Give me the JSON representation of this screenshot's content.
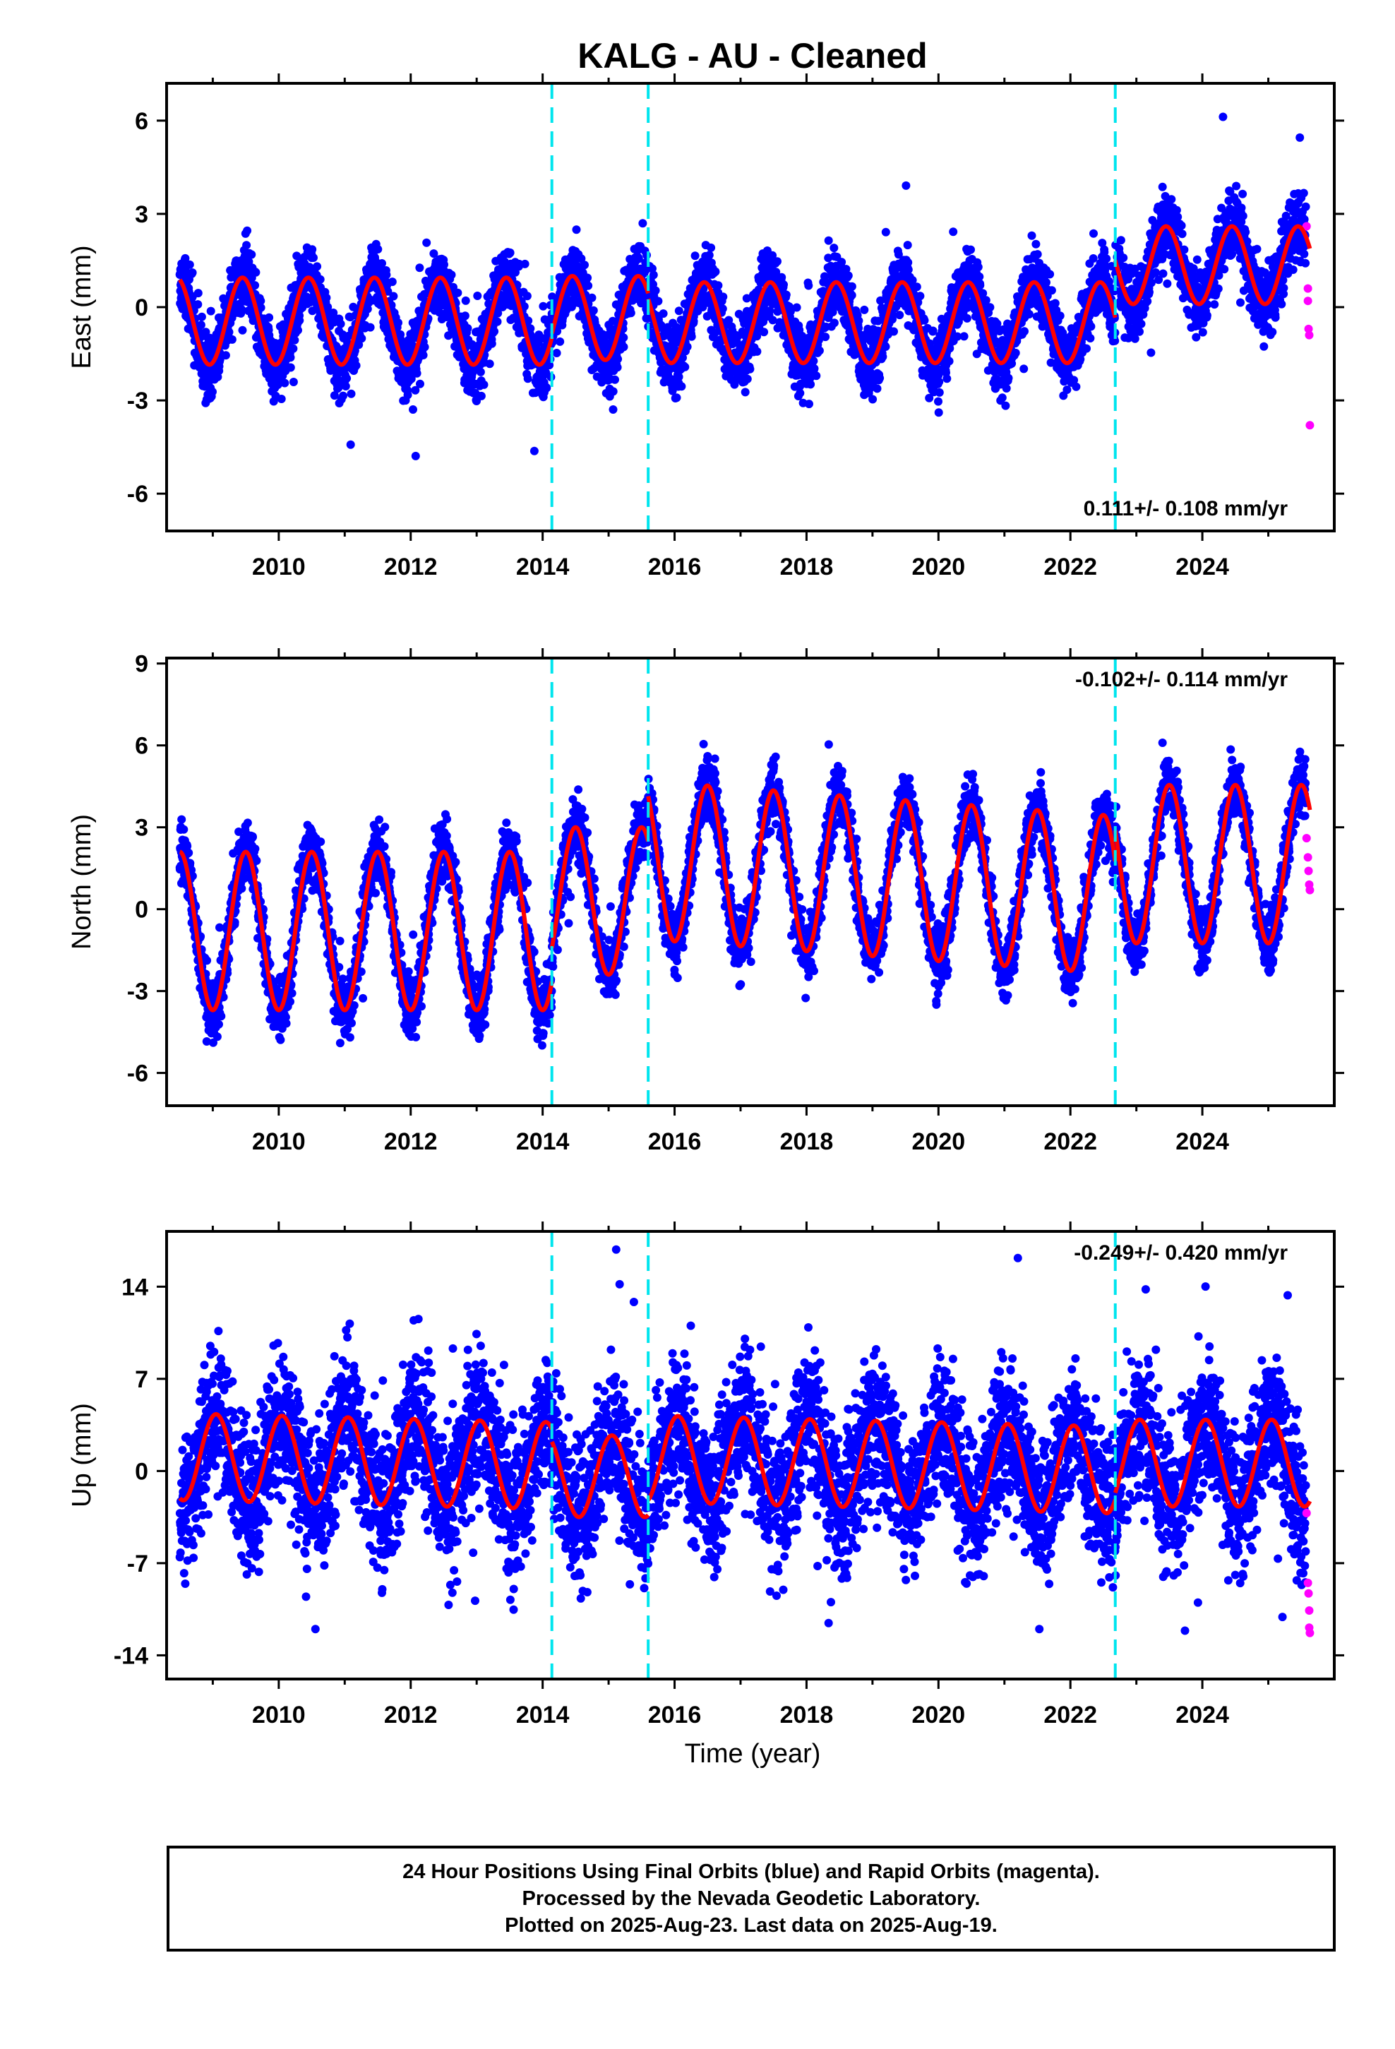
{
  "title": "KALG  - AU - Cleaned",
  "colors": {
    "final_orbits": "#0000ff",
    "rapid_orbits": "#ff00ff",
    "model_fit": "#ff0000",
    "equipment_change": "#00e5ee",
    "frame": "#000000"
  },
  "chart_data": [
    {
      "type": "scatter",
      "panel": "east",
      "ylabel": "East (mm)",
      "xlabel": "",
      "xlim": [
        2008.3,
        2026.0
      ],
      "ylim": [
        -7.2,
        7.2
      ],
      "xticks": [
        "2010",
        "2012",
        "2014",
        "2016",
        "2018",
        "2020",
        "2022",
        "2024"
      ],
      "yticks": [
        "-6",
        "-3",
        "0",
        "3",
        "6"
      ],
      "ytick_values": [
        -6,
        -3,
        0,
        3,
        6
      ],
      "annotation": "0.111+/- 0.108 mm/yr",
      "annotation_position": "bottom-right",
      "breaks": [
        2014.14,
        2015.6,
        2022.68
      ],
      "model_segments": [
        {
          "start": 2008.5,
          "end": 2014.14,
          "offset": -0.45,
          "trend": 0.0,
          "amplitude": 1.4,
          "phase_peak": 0.45
        },
        {
          "start": 2014.14,
          "end": 2015.6,
          "offset": -0.35,
          "trend": 0.0,
          "amplitude": 1.35,
          "phase_peak": 0.45
        },
        {
          "start": 2015.6,
          "end": 2022.68,
          "offset": -0.5,
          "trend": 0.0,
          "amplitude": 1.3,
          "phase_peak": 0.45
        },
        {
          "start": 2022.68,
          "end": 2025.63,
          "offset": 1.35,
          "trend": 0.0,
          "amplitude": 1.25,
          "phase_peak": 0.45
        }
      ],
      "scatter_spread": 0.8,
      "rapid_points": [
        {
          "x": 2025.58,
          "y": 2.6
        },
        {
          "x": 2025.6,
          "y": 0.6
        },
        {
          "x": 2025.6,
          "y": 0.2
        },
        {
          "x": 2025.61,
          "y": -0.7
        },
        {
          "x": 2025.62,
          "y": -0.9
        },
        {
          "x": 2025.63,
          "y": -3.8
        }
      ]
    },
    {
      "type": "scatter",
      "panel": "north",
      "ylabel": "North (mm)",
      "xlabel": "",
      "xlim": [
        2008.3,
        2026.0
      ],
      "ylim": [
        -7.2,
        9.2
      ],
      "xticks": [
        "2010",
        "2012",
        "2014",
        "2016",
        "2018",
        "2020",
        "2022",
        "2024"
      ],
      "yticks": [
        "-6",
        "-3",
        "0",
        "3",
        "6",
        "9"
      ],
      "ytick_values": [
        -6,
        -3,
        0,
        3,
        6,
        9
      ],
      "annotation": "-0.102+/- 0.114 mm/yr",
      "annotation_position": "top-right",
      "breaks": [
        2014.14,
        2015.6,
        2022.68
      ],
      "model_segments": [
        {
          "start": 2008.5,
          "end": 2014.14,
          "offset": -0.8,
          "trend": 0.0,
          "amplitude": 2.9,
          "phase_peak": 0.5
        },
        {
          "start": 2014.14,
          "end": 2015.6,
          "offset": 0.3,
          "trend": 0.0,
          "amplitude": 2.7,
          "phase_peak": 0.5
        },
        {
          "start": 2015.6,
          "end": 2022.68,
          "offset": 1.9,
          "trend": -0.18,
          "amplitude": 2.9,
          "phase_peak": 0.5
        },
        {
          "start": 2022.68,
          "end": 2025.63,
          "offset": 1.65,
          "trend": 0.0,
          "amplitude": 2.9,
          "phase_peak": 0.5
        }
      ],
      "scatter_spread": 0.8,
      "rapid_points": [
        {
          "x": 2025.58,
          "y": 2.6
        },
        {
          "x": 2025.6,
          "y": 1.9
        },
        {
          "x": 2025.61,
          "y": 1.4
        },
        {
          "x": 2025.62,
          "y": 0.9
        },
        {
          "x": 2025.63,
          "y": 0.7
        }
      ]
    },
    {
      "type": "scatter",
      "panel": "up",
      "ylabel": "Up (mm)",
      "xlabel": "Time (year)",
      "xlim": [
        2008.3,
        2026.0
      ],
      "ylim": [
        -15.8,
        18.2
      ],
      "xticks": [
        "2010",
        "2012",
        "2014",
        "2016",
        "2018",
        "2020",
        "2022",
        "2024"
      ],
      "yticks": [
        "-14",
        "-7",
        "0",
        "7",
        "14"
      ],
      "ytick_values": [
        -14,
        -7,
        0,
        7,
        14
      ],
      "annotation": "-0.249+/- 0.420 mm/yr",
      "annotation_position": "top-right",
      "breaks": [
        2014.14,
        2015.6,
        2022.68
      ],
      "model_segments": [
        {
          "start": 2008.5,
          "end": 2014.14,
          "offset": 0.3,
          "trend": -0.12,
          "amplitude": 3.3,
          "phase_peak": 0.05
        },
        {
          "start": 2014.14,
          "end": 2015.6,
          "offset": -0.4,
          "trend": 0.0,
          "amplitude": 3.1,
          "phase_peak": 0.05
        },
        {
          "start": 2015.6,
          "end": 2022.68,
          "offset": 1.0,
          "trend": -0.12,
          "amplitude": 3.3,
          "phase_peak": 0.05
        },
        {
          "start": 2022.68,
          "end": 2025.63,
          "offset": 0.6,
          "trend": 0.0,
          "amplitude": 3.3,
          "phase_peak": 0.05
        }
      ],
      "scatter_spread": 3.8,
      "rapid_points": [
        {
          "x": 2025.58,
          "y": -3.2
        },
        {
          "x": 2025.6,
          "y": -8.5
        },
        {
          "x": 2025.61,
          "y": -9.3
        },
        {
          "x": 2025.62,
          "y": -10.6
        },
        {
          "x": 2025.62,
          "y": -11.9
        },
        {
          "x": 2025.63,
          "y": -12.3
        }
      ]
    }
  ],
  "caption": {
    "line1": "24 Hour Positions Using Final Orbits (blue) and Rapid Orbits (magenta).",
    "line2": "Processed by the Nevada Geodetic Laboratory.",
    "line3": "Plotted on 2025-Aug-23. Last data on 2025-Aug-19."
  }
}
